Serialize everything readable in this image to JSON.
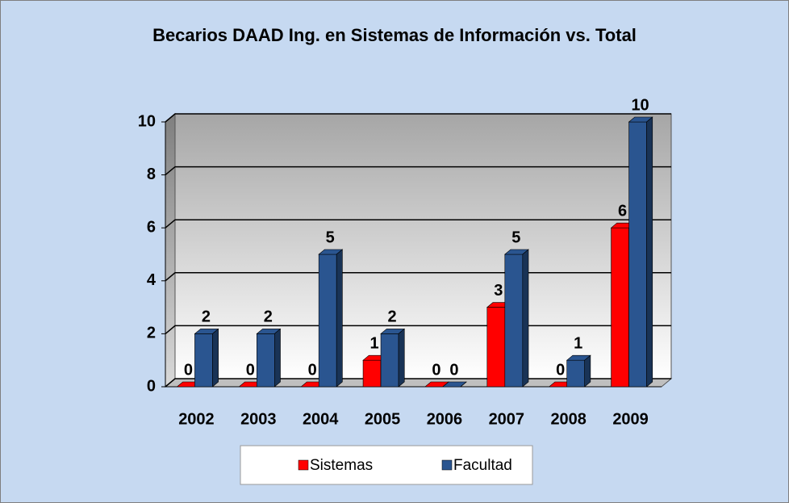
{
  "chart_data": {
    "type": "bar",
    "title": "Becarios DAAD Ing. en Sistemas de Información vs. Total",
    "categories": [
      "2002",
      "2003",
      "2004",
      "2005",
      "2006",
      "2007",
      "2008",
      "2009"
    ],
    "series": [
      {
        "name": "Sistemas",
        "color": "#ff0000",
        "values": [
          0,
          0,
          0,
          1,
          0,
          3,
          0,
          6
        ]
      },
      {
        "name": "Facultad",
        "color": "#2a5590",
        "values": [
          2,
          2,
          5,
          2,
          0,
          5,
          1,
          10
        ]
      }
    ],
    "ylim": [
      0,
      10
    ],
    "yticks": [
      0,
      2,
      4,
      6,
      8,
      10
    ],
    "grid": true,
    "legend": "bottom"
  }
}
